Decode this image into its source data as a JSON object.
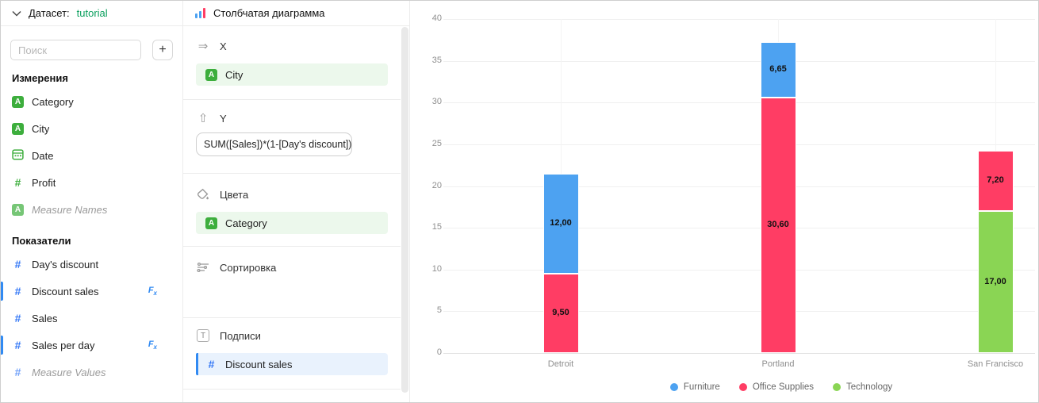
{
  "sidebar": {
    "header": {
      "label": "Датасет:",
      "dataset": "tutorial"
    },
    "search": {
      "placeholder": "Поиск",
      "add_button": "+"
    },
    "fx_badge": "Fx",
    "dimensions": {
      "heading": "Измерения",
      "items": [
        {
          "label": "Category",
          "type": "string"
        },
        {
          "label": "City",
          "type": "string"
        },
        {
          "label": "Date",
          "type": "date"
        },
        {
          "label": "Profit",
          "type": "number"
        },
        {
          "label": "Measure Names",
          "type": "string",
          "italic": true
        }
      ]
    },
    "measures": {
      "heading": "Показатели",
      "items": [
        {
          "label": "Day's discount",
          "type": "number"
        },
        {
          "label": "Discount sales",
          "type": "number",
          "fx": true,
          "active": true
        },
        {
          "label": "Sales",
          "type": "number"
        },
        {
          "label": "Sales per day",
          "type": "number",
          "fx": true,
          "active": true
        },
        {
          "label": "Measure Values",
          "type": "number",
          "italic": true
        }
      ]
    }
  },
  "shelf": {
    "title": "Столбчатая диаграмма",
    "sections": [
      {
        "label": "X",
        "field": "City",
        "field_type": "string"
      },
      {
        "label": "Y",
        "formula": "SUM([Sales])*(1-[Day's discount])"
      },
      {
        "label": "Цвета",
        "field": "Category",
        "field_type": "string"
      },
      {
        "label": "Сортировка"
      },
      {
        "label": "Подписи",
        "field": "Discount sales",
        "field_type": "number"
      }
    ]
  },
  "chart_data": {
    "type": "bar",
    "stacked": true,
    "categories": [
      "Detroit",
      "Portland",
      "San Francisco"
    ],
    "series": [
      {
        "name": "Furniture",
        "color": "#4DA2F1",
        "values": [
          12.0,
          6.65,
          null
        ]
      },
      {
        "name": "Office Supplies",
        "color": "#FF3D64",
        "values": [
          9.5,
          30.6,
          7.2
        ]
      },
      {
        "name": "Technology",
        "color": "#8AD554",
        "values": [
          null,
          null,
          17.0
        ]
      }
    ],
    "stack_order_bottom_to_top": [
      "Technology",
      "Office Supplies",
      "Furniture"
    ],
    "data_labels": {
      "Detroit": {
        "Furniture": "12,00",
        "Office Supplies": "9,50"
      },
      "Portland": {
        "Furniture": "6,65",
        "Office Supplies": "30,60"
      },
      "San Francisco": {
        "Office Supplies": "7,20",
        "Technology": "17,00"
      }
    },
    "ylim": [
      0,
      40
    ],
    "yticks": [
      "0",
      "5",
      "10",
      "15",
      "20",
      "25",
      "30",
      "35",
      "40"
    ],
    "grid": true,
    "legend": {
      "position": "bottom",
      "items": [
        "Furniture",
        "Office Supplies",
        "Technology"
      ]
    }
  },
  "colors": {
    "accent_blue": "#318AF2",
    "measure_blue": "#3377F6",
    "dimension_green": "#3DAE3D",
    "link_green": "#0BA05E",
    "bar_blue": "#4DA2F1",
    "bar_red": "#FF3D64",
    "bar_green": "#8AD554"
  }
}
